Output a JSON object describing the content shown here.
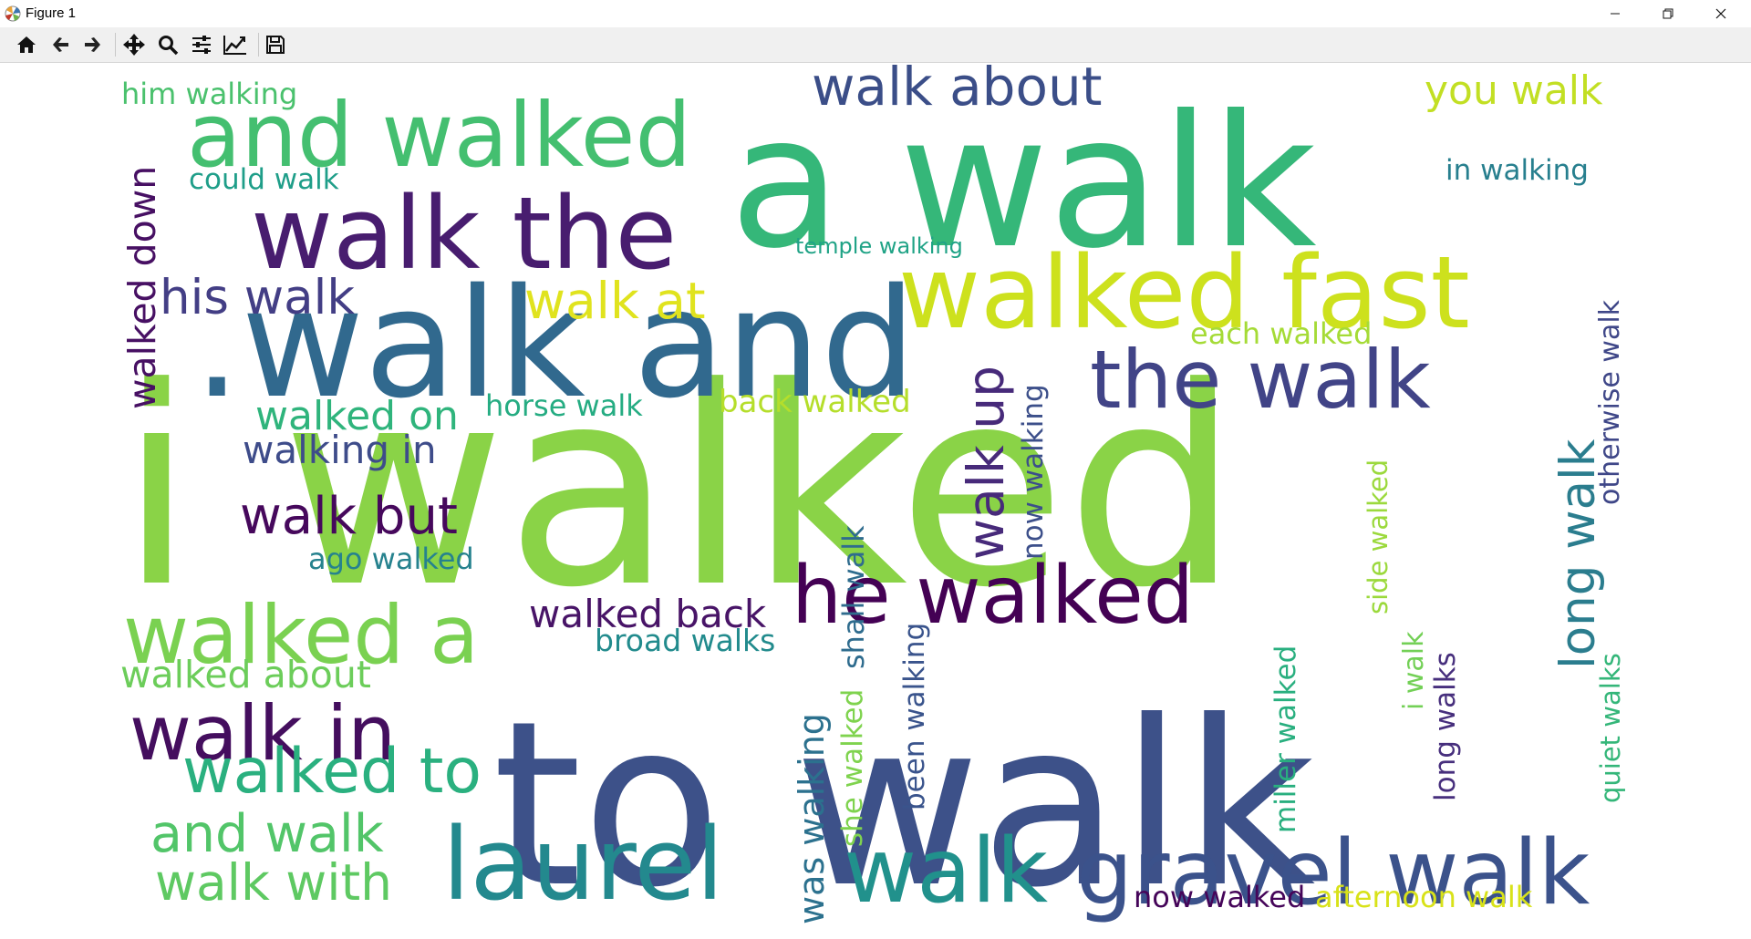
{
  "window": {
    "title": "Figure 1",
    "controls": [
      "minimize",
      "restore",
      "close"
    ]
  },
  "toolbar": {
    "buttons": [
      {
        "name": "home-button",
        "icon": "home-icon",
        "tooltip": "Reset original view"
      },
      {
        "name": "back-button",
        "icon": "arrow-left-icon",
        "tooltip": "Back to previous view"
      },
      {
        "name": "forward-button",
        "icon": "arrow-right-icon",
        "tooltip": "Forward to next view"
      },
      {
        "name": "pan-button",
        "icon": "move-icon",
        "tooltip": "Pan axes"
      },
      {
        "name": "zoom-button",
        "icon": "magnifier-icon",
        "tooltip": "Zoom to rectangle"
      },
      {
        "name": "configure-subplots-button",
        "icon": "sliders-icon",
        "tooltip": "Configure subplots"
      },
      {
        "name": "edit-axis-button",
        "icon": "line-chart-icon",
        "tooltip": "Edit axis"
      },
      {
        "name": "save-button",
        "icon": "floppy-disk-icon",
        "tooltip": "Save the figure"
      }
    ]
  },
  "wordcloud": {
    "words": [
      {
        "text": "i walked",
        "color": "#8ad347"
      },
      {
        "text": "to walk",
        "color": "#3d5189"
      },
      {
        "text": "a walk",
        "color": "#35b779"
      },
      {
        "text": ".walk and",
        "color": "#31698e"
      },
      {
        "text": "walked fast",
        "color": "#cde11d"
      },
      {
        "text": "walk the",
        "color": "#481d6f"
      },
      {
        "text": "and walked",
        "color": "#44bf70"
      },
      {
        "text": "the walk",
        "color": "#414487"
      },
      {
        "text": "laurel",
        "color": "#23898e"
      },
      {
        "text": "walk",
        "color": "#21918c"
      },
      {
        "text": "gravel walk",
        "color": "#3b528b"
      },
      {
        "text": "he walked",
        "color": "#440154"
      },
      {
        "text": "walked a",
        "color": "#7ad151"
      },
      {
        "text": "walk in",
        "color": "#440e5e"
      },
      {
        "text": "walked to",
        "color": "#2ab07f"
      },
      {
        "text": "walk about",
        "color": "#3b4e88"
      },
      {
        "text": "walk but",
        "color": "#46085c"
      },
      {
        "text": "walk up",
        "color": "#472a7a"
      },
      {
        "text": "his walk",
        "color": "#433e85"
      },
      {
        "text": "walk at",
        "color": "#e0e31e"
      },
      {
        "text": "long walk",
        "color": "#2b7d8e"
      },
      {
        "text": "and walk",
        "color": "#52c569"
      },
      {
        "text": "walk with",
        "color": "#5ec962"
      },
      {
        "text": "you walk",
        "color": "#c2df23"
      },
      {
        "text": "walked back",
        "color": "#481467"
      },
      {
        "text": "walked on",
        "color": "#2fb47c"
      },
      {
        "text": "walking in",
        "color": "#3e4c8a"
      },
      {
        "text": "walked down",
        "color": "#471063"
      },
      {
        "text": "walked about",
        "color": "#6ccd5a"
      },
      {
        "text": "broad walks",
        "color": "#228b8d"
      },
      {
        "text": "horse walk",
        "color": "#25ac82"
      },
      {
        "text": "back walked",
        "color": "#b5de2b"
      },
      {
        "text": "ago walked",
        "color": "#26828e"
      },
      {
        "text": "him walking",
        "color": "#4ac16d"
      },
      {
        "text": "could walk",
        "color": "#1f9e89"
      },
      {
        "text": "in walking",
        "color": "#277f8e"
      },
      {
        "text": "temple walking",
        "color": "#20a386"
      },
      {
        "text": "each walked",
        "color": "#a5db36"
      },
      {
        "text": "was walking",
        "color": "#2c718e"
      },
      {
        "text": "shall walk",
        "color": "#2f6c8e"
      },
      {
        "text": "now walking",
        "color": "#3c4f8a"
      },
      {
        "text": "she walked",
        "color": "#7fd34e"
      },
      {
        "text": "been walking",
        "color": "#3a548c"
      },
      {
        "text": "side walked",
        "color": "#9bd93c"
      },
      {
        "text": "miller walked",
        "color": "#29af7f"
      },
      {
        "text": "i walk",
        "color": "#73d056"
      },
      {
        "text": "long walks",
        "color": "#472f7d"
      },
      {
        "text": "quiet walks",
        "color": "#34b679"
      },
      {
        "text": "otherwise walk",
        "color": "#3f4788"
      },
      {
        "text": "now walked",
        "color": "#450559"
      },
      {
        "text": "afternoon walk",
        "color": "#d8e219"
      }
    ]
  }
}
